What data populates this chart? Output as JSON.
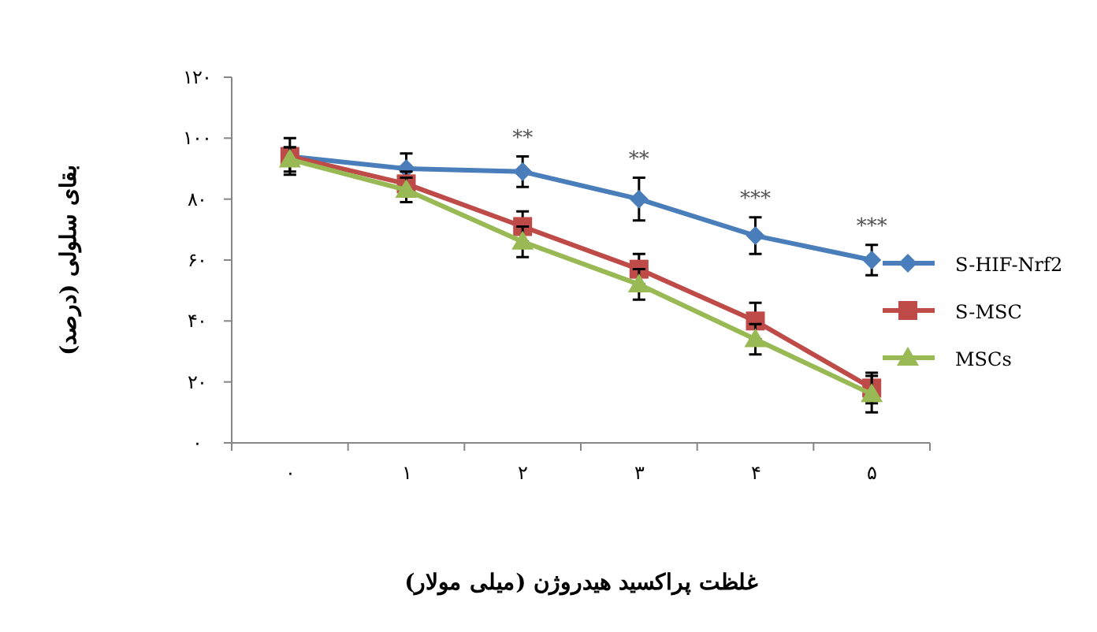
{
  "chart_data": {
    "type": "line",
    "xlabel": "غلظت پراکسید هیدروژن (میلی مولار)",
    "ylabel": "بقای سلولی (درصد)",
    "categories": [
      "۰",
      "۱",
      "۲",
      "۳",
      "۴",
      "۵"
    ],
    "series": [
      {
        "name": "S-HIF-Nrf2",
        "color": "#4a7ebb",
        "marker": "diamond",
        "values": [
          94,
          90,
          89,
          80,
          68,
          60
        ],
        "errors": [
          6,
          5,
          5,
          7,
          6,
          5
        ]
      },
      {
        "name": "S-MSC",
        "color": "#be4b48",
        "marker": "square",
        "values": [
          94,
          85,
          71,
          57,
          40,
          18
        ],
        "errors": [
          3,
          4,
          5,
          5,
          6,
          5
        ]
      },
      {
        "name": "MSCs",
        "color": "#98b954",
        "marker": "triangle",
        "values": [
          93,
          83,
          66,
          52,
          34,
          16
        ],
        "errors": [
          4,
          4,
          5,
          5,
          5,
          6
        ]
      }
    ],
    "ylim": [
      0,
      120
    ],
    "yticks": [
      {
        "value": 0,
        "label": "۰"
      },
      {
        "value": 20,
        "label": "۲۰"
      },
      {
        "value": 40,
        "label": "۴۰"
      },
      {
        "value": 60,
        "label": "۶۰"
      },
      {
        "value": 80,
        "label": "۸۰"
      },
      {
        "value": 100,
        "label": "۱۰۰"
      },
      {
        "value": 120,
        "label": "۱۲۰"
      }
    ],
    "annotations": [
      {
        "text": "**",
        "x": "۲",
        "y": 89
      },
      {
        "text": "**",
        "x": "۳",
        "y": 80
      },
      {
        "text": "***",
        "x": "۴",
        "y": 68
      },
      {
        "text": "***",
        "x": "۵",
        "y": 60
      }
    ],
    "legend": "right",
    "grid": false
  }
}
